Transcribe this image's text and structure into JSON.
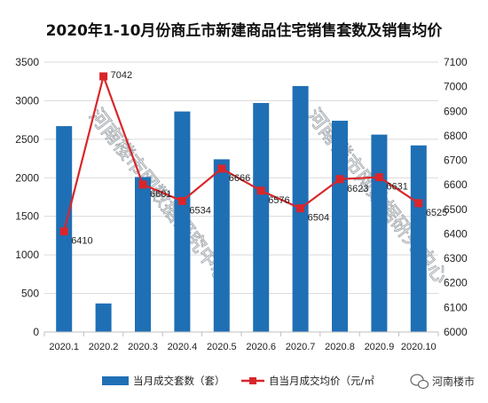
{
  "chart_data": {
    "type": "bar+line",
    "title": "2020年1-10月份商丘市新建商品住宅销售套数及销售均价",
    "categories": [
      "2020.1",
      "2020.2",
      "2020.3",
      "2020.4",
      "2020.5",
      "2020.6",
      "2020.7",
      "2020.8",
      "2020.9",
      "2020.10"
    ],
    "series": [
      {
        "name": "当月成交套数（套）",
        "type": "bar",
        "axis": "left",
        "color": "#1f6fb5",
        "values": [
          2670,
          370,
          2010,
          2860,
          2240,
          2970,
          3190,
          2740,
          2560,
          2420
        ]
      },
      {
        "name": "自当月成交均价（元/㎡",
        "type": "line",
        "axis": "right",
        "color": "#d9262a",
        "values": [
          6410,
          7042,
          6601,
          6534,
          6666,
          6576,
          6504,
          6623,
          6631,
          6525
        ],
        "labels": [
          "6410",
          "7042",
          "6601",
          "6534",
          "6666",
          "6576",
          "6504",
          "6623",
          "6631",
          "6525"
        ]
      }
    ],
    "y_left": {
      "min": 0,
      "max": 3500,
      "step": 500,
      "ticks": [
        "0",
        "500",
        "1000",
        "1500",
        "2000",
        "2500",
        "3000",
        "3500"
      ]
    },
    "y_right": {
      "min": 6000,
      "max": 7100,
      "step": 100,
      "ticks": [
        "6000",
        "6100",
        "6200",
        "6300",
        "6400",
        "6500",
        "6600",
        "6700",
        "6800",
        "6900",
        "7000",
        "7100"
      ]
    },
    "grid": true,
    "legend_position": "bottom"
  },
  "watermarks": [
    "河南楼市网数据研究中心",
    "河南楼市网数据研究中心"
  ],
  "brand": {
    "text": "河南楼市",
    "icon": "wechat-icon"
  }
}
